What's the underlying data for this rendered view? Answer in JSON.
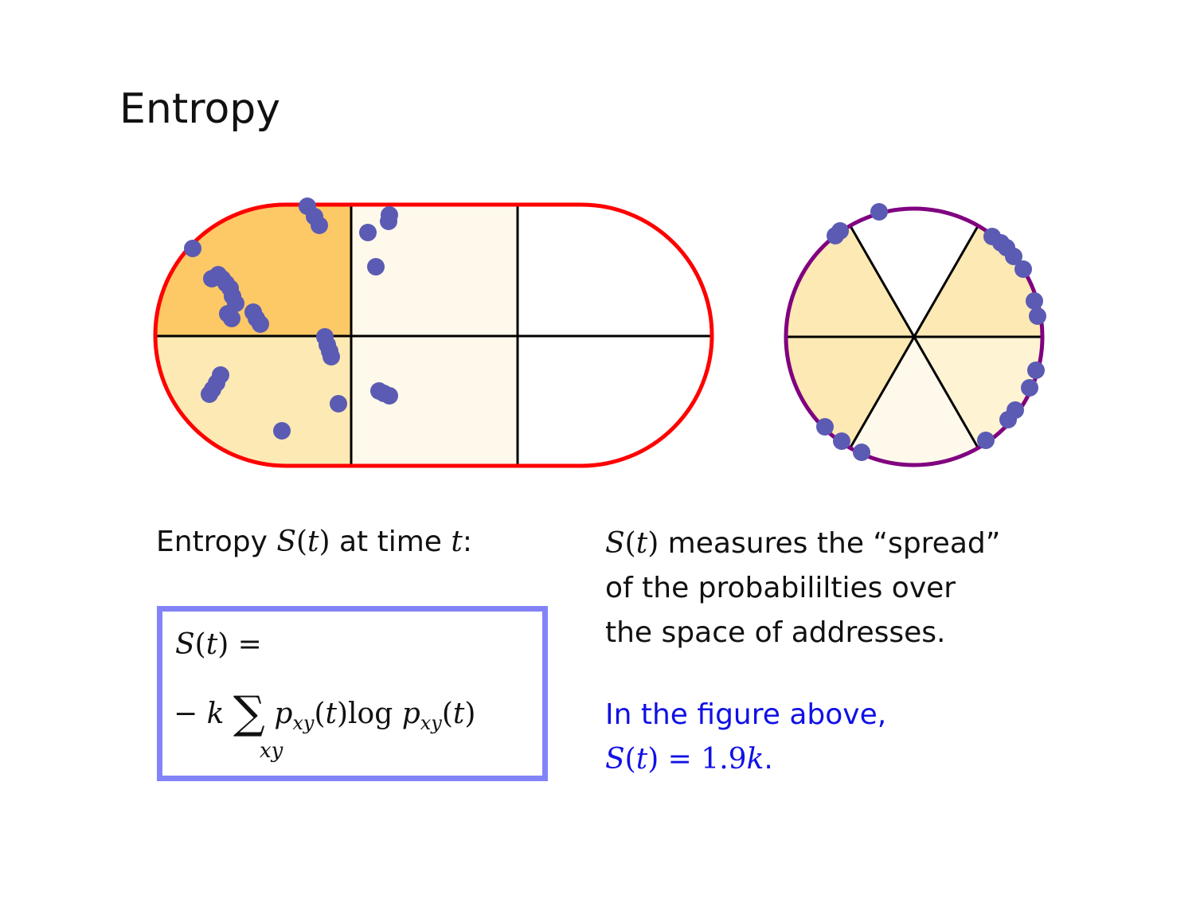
{
  "title": "Entropy",
  "label": {
    "prefix": "Entropy ",
    "func": "S",
    "paren_open": "(",
    "var": "t",
    "paren_close": ")",
    "mid": " at time ",
    "var2": "t",
    "suffix": ":"
  },
  "formula": {
    "lhs_func": "S",
    "lhs_open": "(",
    "lhs_var": "t",
    "lhs_close": ")",
    "eq": " =",
    "minus": "− ",
    "k": "k",
    "sigma": "∑",
    "sum_index": "xy",
    "p1": "p",
    "sub1": "xy",
    "arg1_open": "(",
    "arg1_var": "t",
    "arg1_close": ")",
    "log": "log ",
    "p2": "p",
    "sub2": "xy",
    "arg2_open": "(",
    "arg2_var": "t",
    "arg2_close": ")"
  },
  "description": {
    "line1_func": "S",
    "line1_open": "(",
    "line1_var": "t",
    "line1_close": ")",
    "line1_rest": " measures the “spread”",
    "line2": "of the probabililties over",
    "line3": "the space of addresses."
  },
  "note": {
    "line1": "In the figure above,",
    "func": "S",
    "open": "(",
    "var": "t",
    "close": ")",
    "eq": " = ",
    "value": "1.9",
    "k": "k",
    "period": "."
  },
  "colors": {
    "stadium_border": "#ff0000",
    "circle_border": "#800080",
    "dot": "#5b5bb4",
    "formula_border": "#8383f8",
    "note_text": "#1010e6",
    "cell_dark": "#fdc866",
    "cell_medium": "#fde9b3",
    "cell_light": "#fef9eb",
    "cell_white": "#ffffff"
  }
}
